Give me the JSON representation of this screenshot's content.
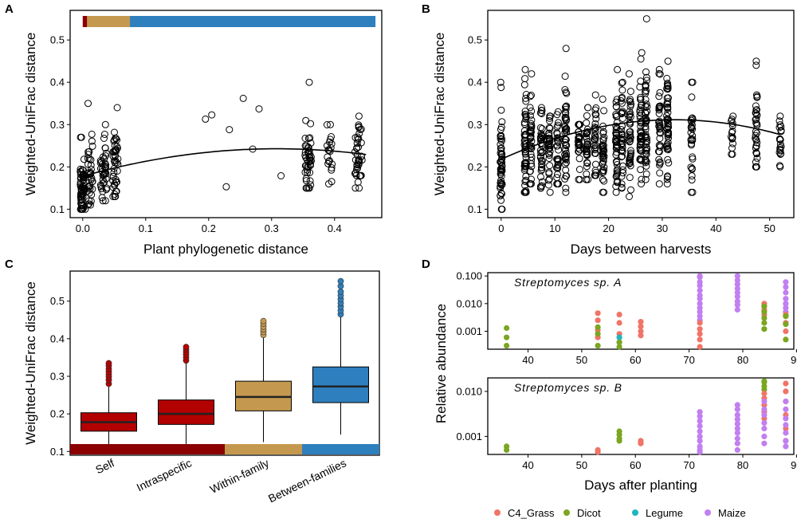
{
  "figure": {
    "panels": [
      "A",
      "B",
      "C",
      "D"
    ]
  },
  "chart_data": [
    {
      "id": "A",
      "type": "scatter",
      "xlabel": "Plant phylogenetic distance",
      "ylabel": "Weighted-UniFrac distance",
      "xlim": [
        -0.02,
        0.475
      ],
      "ylim": [
        0.08,
        0.57
      ],
      "xticks": [
        0.0,
        0.1,
        0.2,
        0.3,
        0.4
      ],
      "xtick_labels": [
        "0.0",
        "0.1",
        "0.2",
        "0.3",
        "0.4"
      ],
      "yticks": [
        0.1,
        0.2,
        0.3,
        0.4,
        0.5
      ],
      "ytick_labels": [
        "0.1",
        "0.2",
        "0.3",
        "0.4",
        "0.5"
      ],
      "color_bar": [
        {
          "from": 0.0,
          "to": 0.007,
          "color": "#8b0000"
        },
        {
          "from": 0.007,
          "to": 0.075,
          "color": "#c4994f"
        },
        {
          "from": 0.075,
          "to": 0.465,
          "color": "#2e7fbd"
        }
      ],
      "clusters": [
        {
          "x": 0.0,
          "spread": 0.004,
          "n": 60,
          "mean": 0.15,
          "sd": 0.035,
          "min": 0.1,
          "max": 0.27
        },
        {
          "x": 0.012,
          "spread": 0.004,
          "n": 35,
          "mean": 0.18,
          "sd": 0.045,
          "min": 0.11,
          "max": 0.35
        },
        {
          "x": 0.033,
          "spread": 0.005,
          "n": 40,
          "mean": 0.19,
          "sd": 0.04,
          "min": 0.12,
          "max": 0.3
        },
        {
          "x": 0.052,
          "spread": 0.004,
          "n": 45,
          "mean": 0.2,
          "sd": 0.045,
          "min": 0.13,
          "max": 0.34
        },
        {
          "x": 0.358,
          "spread": 0.005,
          "n": 45,
          "mean": 0.22,
          "sd": 0.055,
          "min": 0.15,
          "max": 0.4
        },
        {
          "x": 0.392,
          "spread": 0.004,
          "n": 20,
          "mean": 0.23,
          "sd": 0.035,
          "min": 0.16,
          "max": 0.3
        },
        {
          "x": 0.438,
          "spread": 0.006,
          "n": 40,
          "mean": 0.23,
          "sd": 0.04,
          "min": 0.15,
          "max": 0.32
        }
      ],
      "points": [
        [
          0.195,
          0.313
        ],
        [
          0.205,
          0.323
        ],
        [
          0.228,
          0.153
        ],
        [
          0.233,
          0.288
        ],
        [
          0.255,
          0.362
        ],
        [
          0.27,
          0.242
        ],
        [
          0.28,
          0.337
        ],
        [
          0.315,
          0.179
        ]
      ],
      "fit": {
        "type": "quadratic",
        "coef": [
          0.178,
          0.42,
          -0.68
        ],
        "xmin": 0.0,
        "xmax": 0.45
      }
    },
    {
      "id": "B",
      "type": "scatter",
      "xlabel": "Days between harvests",
      "ylabel": "Weighted-UniFrac distance",
      "xlim": [
        -2.5,
        54.5
      ],
      "ylim": [
        0.08,
        0.57
      ],
      "xticks": [
        0,
        10,
        20,
        30,
        40,
        50
      ],
      "xtick_labels": [
        "0",
        "10",
        "20",
        "30",
        "40",
        "50"
      ],
      "yticks": [
        0.1,
        0.2,
        0.3,
        0.4,
        0.5
      ],
      "ytick_labels": [
        "0.1",
        "0.2",
        "0.3",
        "0.4",
        "0.5"
      ],
      "columns": [
        {
          "x": 0,
          "n": 55,
          "min": 0.1,
          "max": 0.4,
          "mean": 0.21,
          "sd": 0.06
        },
        {
          "x": 4.5,
          "n": 55,
          "min": 0.14,
          "max": 0.43,
          "mean": 0.25,
          "sd": 0.06
        },
        {
          "x": 5.5,
          "n": 40,
          "min": 0.16,
          "max": 0.42,
          "mean": 0.26,
          "sd": 0.06
        },
        {
          "x": 7.5,
          "n": 40,
          "min": 0.15,
          "max": 0.34,
          "mean": 0.24,
          "sd": 0.05
        },
        {
          "x": 9,
          "n": 35,
          "min": 0.14,
          "max": 0.32,
          "mean": 0.24,
          "sd": 0.045
        },
        {
          "x": 10.5,
          "n": 30,
          "min": 0.16,
          "max": 0.33,
          "mean": 0.25,
          "sd": 0.045
        },
        {
          "x": 12,
          "n": 50,
          "min": 0.14,
          "max": 0.48,
          "mean": 0.27,
          "sd": 0.07
        },
        {
          "x": 14.5,
          "n": 30,
          "min": 0.17,
          "max": 0.3,
          "mean": 0.24,
          "sd": 0.035
        },
        {
          "x": 16,
          "n": 35,
          "min": 0.17,
          "max": 0.34,
          "mean": 0.26,
          "sd": 0.04
        },
        {
          "x": 17.5,
          "n": 30,
          "min": 0.18,
          "max": 0.37,
          "mean": 0.26,
          "sd": 0.045
        },
        {
          "x": 19,
          "n": 35,
          "min": 0.14,
          "max": 0.36,
          "mean": 0.23,
          "sd": 0.05
        },
        {
          "x": 21.5,
          "n": 45,
          "min": 0.14,
          "max": 0.43,
          "mean": 0.27,
          "sd": 0.06
        },
        {
          "x": 22.5,
          "n": 40,
          "min": 0.15,
          "max": 0.4,
          "mean": 0.27,
          "sd": 0.06
        },
        {
          "x": 24,
          "n": 40,
          "min": 0.13,
          "max": 0.42,
          "mean": 0.28,
          "sd": 0.06
        },
        {
          "x": 26,
          "n": 45,
          "min": 0.16,
          "max": 0.47,
          "mean": 0.29,
          "sd": 0.065
        },
        {
          "x": 27,
          "n": 50,
          "min": 0.17,
          "max": 0.55,
          "mean": 0.31,
          "sd": 0.075
        },
        {
          "x": 29.5,
          "n": 35,
          "min": 0.16,
          "max": 0.43,
          "mean": 0.3,
          "sd": 0.055
        },
        {
          "x": 31,
          "n": 50,
          "min": 0.16,
          "max": 0.45,
          "mean": 0.3,
          "sd": 0.06
        },
        {
          "x": 35.5,
          "n": 30,
          "min": 0.14,
          "max": 0.4,
          "mean": 0.27,
          "sd": 0.06
        },
        {
          "x": 43,
          "n": 15,
          "min": 0.23,
          "max": 0.32,
          "mean": 0.27,
          "sd": 0.025
        },
        {
          "x": 47.5,
          "n": 35,
          "min": 0.2,
          "max": 0.45,
          "mean": 0.3,
          "sd": 0.055
        },
        {
          "x": 52,
          "n": 20,
          "min": 0.2,
          "max": 0.32,
          "mean": 0.26,
          "sd": 0.03
        }
      ],
      "fit": {
        "type": "quadratic",
        "coef": [
          0.218,
          0.0058,
          -9e-05
        ],
        "xmin": 0,
        "xmax": 52
      }
    },
    {
      "id": "C",
      "type": "box",
      "xlabel": "",
      "ylabel": "Weighted-UniFrac distance",
      "ylim": [
        0.09,
        0.58
      ],
      "yticks": [
        0.1,
        0.2,
        0.3,
        0.4,
        0.5
      ],
      "ytick_labels": [
        "0.1",
        "0.2",
        "0.3",
        "0.4",
        "0.5"
      ],
      "categories": [
        "Self",
        "Intraspecific",
        "Within-family",
        "Between-families"
      ],
      "colors": [
        "#b30000",
        "#b30000",
        "#c4994f",
        "#2e7fbd"
      ],
      "boxes": [
        {
          "whisker_low": 0.11,
          "q1": 0.154,
          "median": 0.178,
          "q3": 0.203,
          "whisker_high": 0.275,
          "outliers": [
            0.28,
            0.29,
            0.298,
            0.305,
            0.312,
            0.32,
            0.328,
            0.335
          ]
        },
        {
          "whisker_low": 0.12,
          "q1": 0.172,
          "median": 0.2,
          "q3": 0.237,
          "whisker_high": 0.335,
          "outliers": [
            0.342,
            0.35,
            0.358,
            0.365,
            0.372,
            0.378
          ]
        },
        {
          "whisker_low": 0.125,
          "q1": 0.208,
          "median": 0.245,
          "q3": 0.287,
          "whisker_high": 0.405,
          "outliers": [
            0.41,
            0.418,
            0.425,
            0.432,
            0.44,
            0.447
          ]
        },
        {
          "whisker_low": 0.145,
          "q1": 0.23,
          "median": 0.273,
          "q3": 0.325,
          "whisker_high": 0.46,
          "outliers": [
            0.465,
            0.475,
            0.485,
            0.495,
            0.505,
            0.515,
            0.525,
            0.54,
            0.553
          ]
        }
      ]
    },
    {
      "id": "D",
      "type": "scatter",
      "xlabel": "Days after planting",
      "ylabel": "Relative abundance",
      "log_y": true,
      "xlim": [
        32.5,
        89.5
      ],
      "xticks": [
        40,
        50,
        60,
        70,
        80,
        90
      ],
      "xtick_labels": [
        "40",
        "50",
        "60",
        "70",
        "80",
        "90"
      ],
      "legend": [
        {
          "label": "C4_Grass",
          "color": "#f07467"
        },
        {
          "label": "Dicot",
          "color": "#7aa621"
        },
        {
          "label": "Legume",
          "color": "#1eb5c2"
        },
        {
          "label": "Maize",
          "color": "#c27ff0"
        }
      ],
      "facets": [
        {
          "title": "Streptomyces sp. A",
          "ylim_log10": [
            -3.65,
            -0.88
          ],
          "yticks": [
            0.001,
            0.01,
            0.1
          ],
          "ytick_labels": [
            "0.001",
            "0.010",
            "0.100"
          ],
          "groups": [
            {
              "x": 36,
              "cls": 1,
              "values": [
                0.0013,
                0.0006,
                0.0003
              ]
            },
            {
              "x": 53,
              "cls": 0,
              "values": [
                0.0045,
                0.0025,
                0.0011,
                0.0006
              ]
            },
            {
              "x": 53,
              "cls": 1,
              "values": [
                0.0014,
                0.0008,
                0.0003
              ]
            },
            {
              "x": 57,
              "cls": 0,
              "values": [
                0.004,
                0.002,
                0.0008
              ]
            },
            {
              "x": 57,
              "cls": 2,
              "values": [
                0.0006,
                0.0004
              ]
            },
            {
              "x": 57,
              "cls": 1,
              "values": [
                0.0004,
                0.0002
              ]
            },
            {
              "x": 61,
              "cls": 0,
              "values": [
                0.0022,
                0.0015,
                0.001,
                0.0007
              ]
            },
            {
              "x": 72,
              "cls": 3,
              "values": [
                0.13,
                0.09,
                0.06,
                0.045,
                0.03,
                0.02,
                0.015,
                0.01,
                0.007,
                0.005,
                0.0035,
                0.0025
              ]
            },
            {
              "x": 72,
              "cls": 0,
              "values": [
                0.002,
                0.0012,
                0.0008,
                0.0005,
                0.00025
              ]
            },
            {
              "x": 79,
              "cls": 3,
              "values": [
                0.1,
                0.07,
                0.05,
                0.035,
                0.025,
                0.018,
                0.012,
                0.009,
                0.006
              ]
            },
            {
              "x": 84,
              "cls": 0,
              "values": [
                0.01,
                0.008,
                0.006,
                0.004
              ]
            },
            {
              "x": 84,
              "cls": 1,
              "values": [
                0.008,
                0.005,
                0.003,
                0.002,
                0.0012
              ]
            },
            {
              "x": 88,
              "cls": 3,
              "values": [
                0.06,
                0.04,
                0.025,
                0.015,
                0.01,
                0.007,
                0.005,
                0.0035,
                0.002
              ]
            },
            {
              "x": 88,
              "cls": 0,
              "values": [
                0.004,
                0.002,
                0.001
              ]
            },
            {
              "x": 88,
              "cls": 1,
              "values": [
                0.0035,
                0.0018,
                0.0005
              ]
            }
          ]
        },
        {
          "title": "Streptomyces sp. B",
          "ylim_log10": [
            -3.4,
            -1.7
          ],
          "yticks": [
            0.001,
            0.01
          ],
          "ytick_labels": [
            "0.001",
            "0.010"
          ],
          "groups": [
            {
              "x": 36,
              "cls": 1,
              "values": [
                0.0006,
                0.0005
              ]
            },
            {
              "x": 53,
              "cls": 0,
              "values": [
                0.0005,
                0.0004
              ]
            },
            {
              "x": 57,
              "cls": 1,
              "values": [
                0.0013,
                0.0011,
                0.0009,
                0.0008
              ]
            },
            {
              "x": 61,
              "cls": 0,
              "values": [
                0.0008,
                0.0007
              ]
            },
            {
              "x": 72,
              "cls": 3,
              "values": [
                0.0035,
                0.0028,
                0.0022,
                0.0017,
                0.0013,
                0.001,
                0.0008,
                0.0006,
                0.0005,
                0.00045
              ]
            },
            {
              "x": 79,
              "cls": 3,
              "values": [
                0.005,
                0.004,
                0.003,
                0.0024,
                0.0019,
                0.0015,
                0.0012,
                0.0009,
                0.0007,
                0.0005
              ]
            },
            {
              "x": 84,
              "cls": 1,
              "values": [
                0.019,
                0.016,
                0.013,
                0.011
              ]
            },
            {
              "x": 84,
              "cls": 0,
              "values": [
                0.009,
                0.007,
                0.005,
                0.0035,
                0.0025
              ]
            },
            {
              "x": 84,
              "cls": 3,
              "values": [
                0.006,
                0.004,
                0.003,
                0.002,
                0.0015,
                0.001,
                0.0007
              ]
            },
            {
              "x": 88,
              "cls": 0,
              "values": [
                0.015,
                0.01,
                0.006,
                0.003,
                0.0015,
                0.0008
              ]
            },
            {
              "x": 88,
              "cls": 3,
              "values": [
                0.006,
                0.004,
                0.0025,
                0.0018,
                0.0012,
                0.0008,
                0.0006
              ]
            }
          ]
        }
      ]
    }
  ]
}
